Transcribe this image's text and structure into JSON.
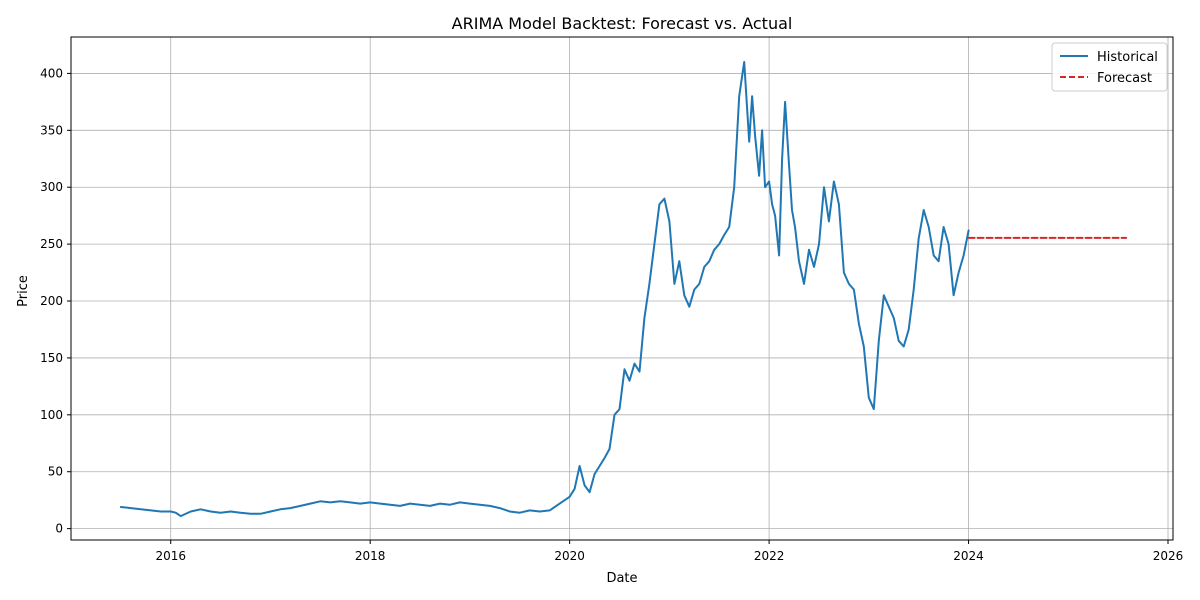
{
  "chart_data": {
    "type": "line",
    "title": "ARIMA Model Backtest: Forecast vs. Actual",
    "xlabel": "Date",
    "ylabel": "Price",
    "xlim": [
      2015.0,
      2026.05
    ],
    "ylim": [
      -10,
      432
    ],
    "xticks": [
      2016,
      2018,
      2020,
      2022,
      2024,
      2026
    ],
    "xtick_labels": [
      "2016",
      "2018",
      "2020",
      "2022",
      "2024",
      "2026"
    ],
    "yticks": [
      0,
      50,
      100,
      150,
      200,
      250,
      300,
      350,
      400
    ],
    "ytick_labels": [
      "0",
      "50",
      "100",
      "150",
      "200",
      "250",
      "300",
      "350",
      "400"
    ],
    "grid": true,
    "legend_position": "upper right",
    "series": [
      {
        "name": "Historical",
        "color": "#1f77b4",
        "style": "solid",
        "x": [
          2015.5,
          2015.6,
          2015.7,
          2015.8,
          2015.9,
          2016.0,
          2016.05,
          2016.1,
          2016.2,
          2016.3,
          2016.4,
          2016.5,
          2016.6,
          2016.7,
          2016.8,
          2016.9,
          2017.0,
          2017.1,
          2017.2,
          2017.3,
          2017.4,
          2017.5,
          2017.6,
          2017.7,
          2017.8,
          2017.9,
          2018.0,
          2018.1,
          2018.2,
          2018.3,
          2018.4,
          2018.5,
          2018.6,
          2018.7,
          2018.8,
          2018.9,
          2019.0,
          2019.1,
          2019.2,
          2019.3,
          2019.4,
          2019.5,
          2019.6,
          2019.7,
          2019.8,
          2019.9,
          2020.0,
          2020.05,
          2020.1,
          2020.15,
          2020.2,
          2020.25,
          2020.3,
          2020.35,
          2020.4,
          2020.45,
          2020.5,
          2020.55,
          2020.6,
          2020.65,
          2020.7,
          2020.75,
          2020.8,
          2020.85,
          2020.9,
          2020.95,
          2021.0,
          2021.05,
          2021.1,
          2021.15,
          2021.2,
          2021.25,
          2021.3,
          2021.35,
          2021.4,
          2021.45,
          2021.5,
          2021.55,
          2021.6,
          2021.65,
          2021.7,
          2021.75,
          2021.8,
          2021.83,
          2021.86,
          2021.9,
          2021.93,
          2021.96,
          2022.0,
          2022.03,
          2022.06,
          2022.1,
          2022.13,
          2022.16,
          2022.2,
          2022.23,
          2022.26,
          2022.3,
          2022.35,
          2022.4,
          2022.45,
          2022.5,
          2022.55,
          2022.6,
          2022.65,
          2022.7,
          2022.75,
          2022.8,
          2022.85,
          2022.9,
          2022.95,
          2023.0,
          2023.05,
          2023.1,
          2023.15,
          2023.2,
          2023.25,
          2023.3,
          2023.35,
          2023.4,
          2023.45,
          2023.5,
          2023.55,
          2023.6,
          2023.65,
          2023.7,
          2023.75,
          2023.8,
          2023.85,
          2023.9,
          2023.95,
          2024.0
        ],
        "y": [
          19,
          18,
          17,
          16,
          15,
          15,
          14,
          11,
          15,
          17,
          15,
          14,
          15,
          14,
          13,
          13,
          15,
          17,
          18,
          20,
          22,
          24,
          23,
          24,
          23,
          22,
          23,
          22,
          21,
          20,
          22,
          21,
          20,
          22,
          21,
          23,
          22,
          21,
          20,
          18,
          15,
          14,
          16,
          15,
          16,
          22,
          28,
          35,
          55,
          38,
          32,
          48,
          55,
          62,
          70,
          100,
          105,
          140,
          130,
          145,
          138,
          185,
          215,
          250,
          285,
          290,
          270,
          215,
          235,
          205,
          195,
          210,
          215,
          230,
          235,
          245,
          250,
          258,
          265,
          300,
          380,
          410,
          340,
          380,
          345,
          310,
          350,
          300,
          305,
          285,
          275,
          240,
          325,
          375,
          320,
          280,
          265,
          235,
          215,
          245,
          230,
          250,
          300,
          270,
          305,
          285,
          225,
          215,
          210,
          180,
          160,
          115,
          105,
          165,
          205,
          195,
          185,
          165,
          160,
          175,
          210,
          255,
          280,
          265,
          240,
          235,
          265,
          250,
          205,
          225,
          240,
          262
        ]
      },
      {
        "name": "Forecast",
        "color": "#d62728",
        "style": "dashed",
        "x": [
          2024.0,
          2025.58
        ],
        "y": [
          255.5,
          255.5
        ]
      }
    ]
  }
}
